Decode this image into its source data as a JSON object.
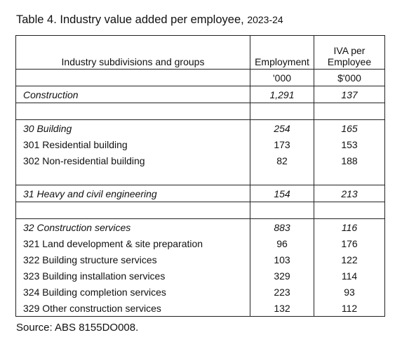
{
  "header": {
    "title": "Table 4. Industry value added per employee,",
    "year": "2023-24"
  },
  "table": {
    "columns": {
      "label": "Industry subdivisions and groups",
      "employment": "Employment",
      "iva": [
        "IVA per",
        "Employee"
      ]
    },
    "units": {
      "employment": "'000",
      "iva": "$'000"
    },
    "rows": [
      {
        "label": "Construction",
        "employment": "1,291",
        "iva": "137",
        "italic": true
      },
      null,
      {
        "label": "30 Building",
        "employment": "254",
        "iva": "165",
        "italic": true
      },
      {
        "label": "301 Residential building",
        "employment": "173",
        "iva": "153",
        "italic": false
      },
      {
        "label": "302 Non-residential building",
        "employment": "82",
        "iva": "188",
        "italic": false
      },
      null,
      {
        "label": "31 Heavy and civil engineering",
        "employment": "154",
        "iva": "213",
        "italic": true
      },
      null,
      {
        "label": "32 Construction services",
        "employment": "883",
        "iva": "116",
        "italic": true
      },
      {
        "label": "321 Land development & site preparation",
        "employment": "96",
        "iva": "176",
        "italic": false
      },
      {
        "label": "322 Building structure services",
        "employment": "103",
        "iva": "122",
        "italic": false
      },
      {
        "label": "323 Building installation services",
        "employment": "329",
        "iva": "114",
        "italic": false
      },
      {
        "label": "324 Building completion services",
        "employment": "223",
        "iva": "93",
        "italic": false
      },
      {
        "label": "329 Other construction services",
        "employment": "132",
        "iva": "112",
        "italic": false
      }
    ]
  },
  "footer": {
    "source": "Source: ABS 8155DO008."
  }
}
